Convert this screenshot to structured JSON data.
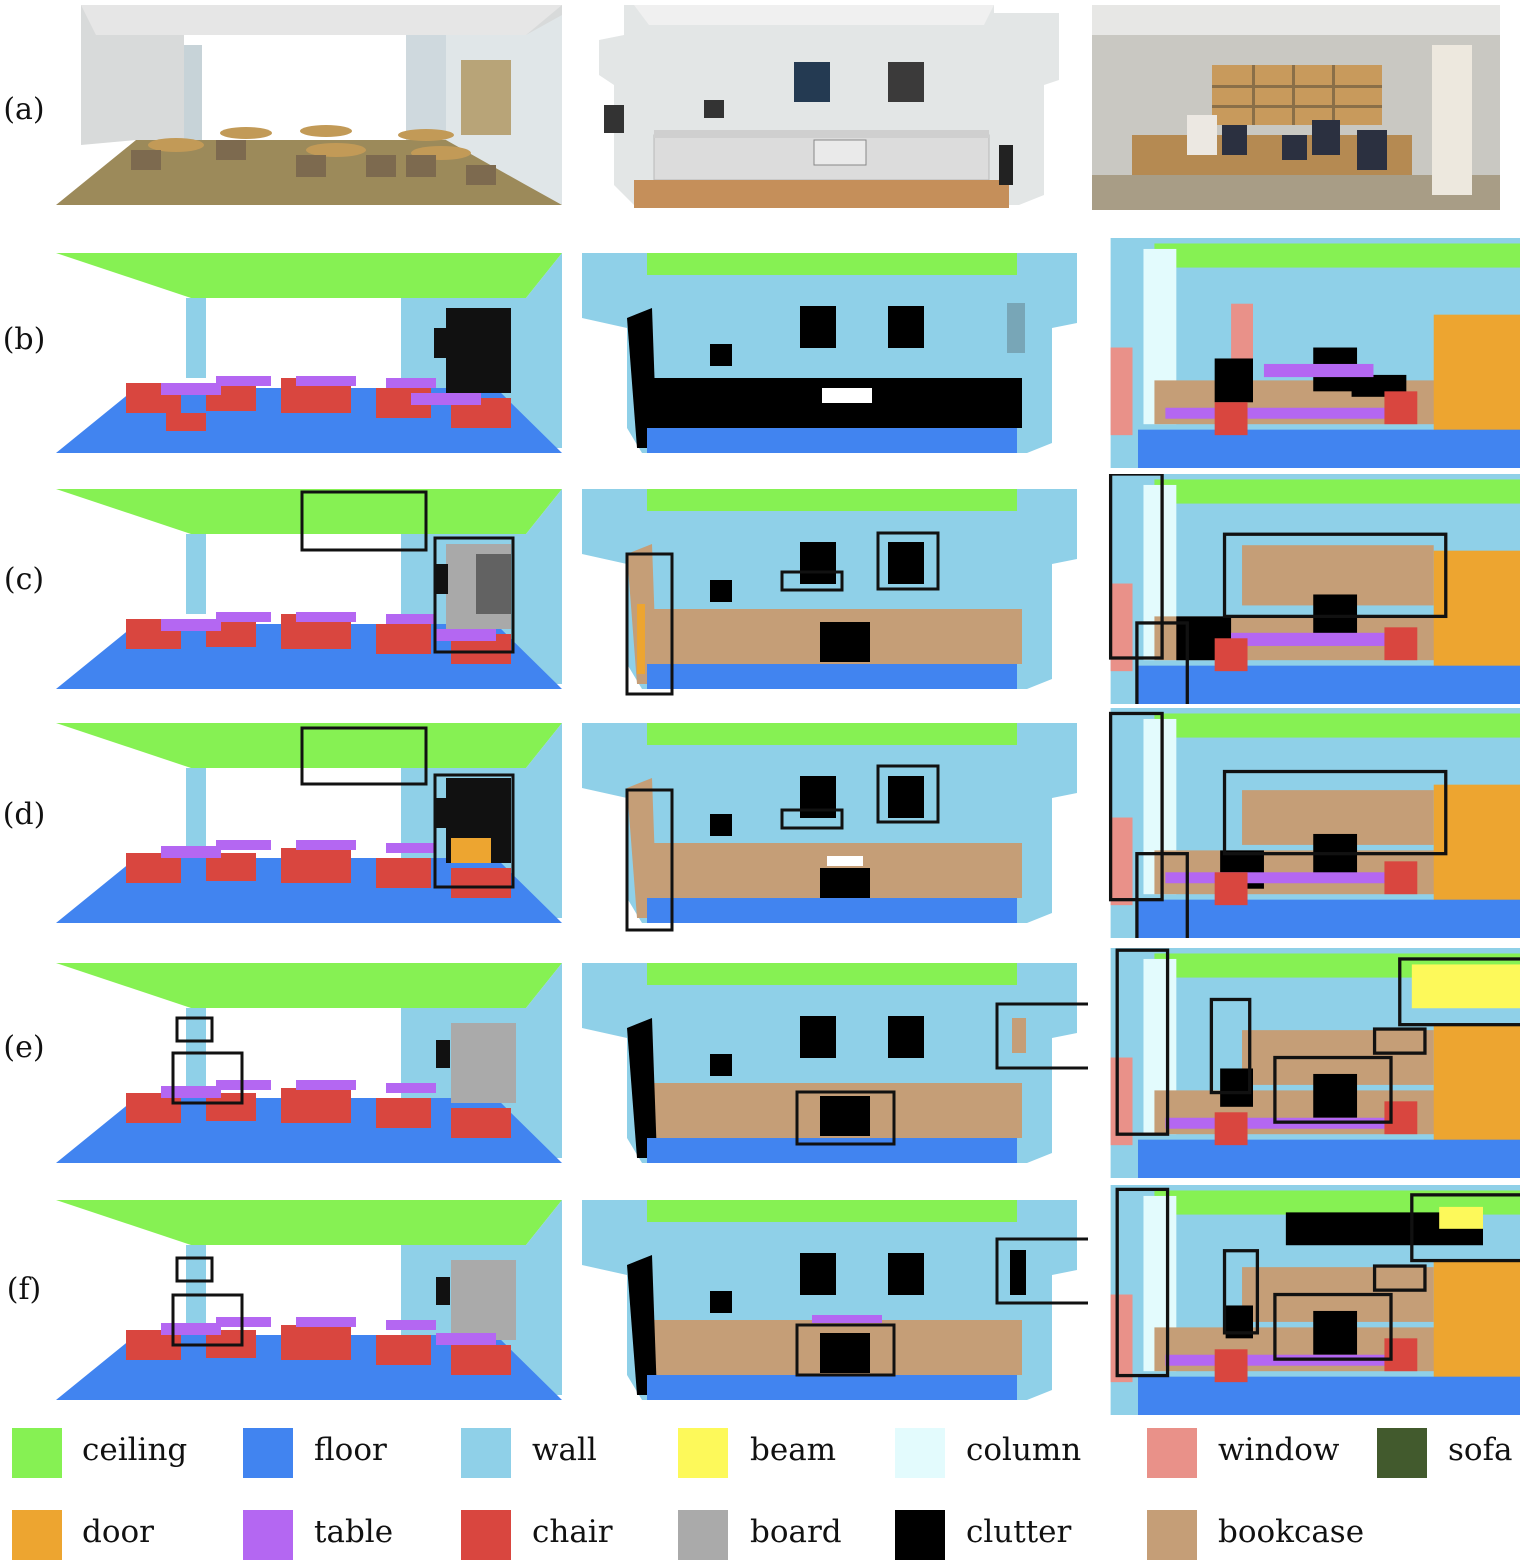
{
  "row_labels": [
    "(a)",
    "(b)",
    "(c)",
    "(d)",
    "(e)",
    "(f)"
  ],
  "legend": [
    {
      "label": "ceiling",
      "color": "#86f153"
    },
    {
      "label": "floor",
      "color": "#4184f0"
    },
    {
      "label": "wall",
      "color": "#8fd0e8"
    },
    {
      "label": "beam",
      "color": "#fdf95a"
    },
    {
      "label": "column",
      "color": "#e3fbfd"
    },
    {
      "label": "window",
      "color": "#e99189"
    },
    {
      "label": "sofa",
      "color": "#425a2d"
    },
    {
      "label": "door",
      "color": "#eda530"
    },
    {
      "label": "table",
      "color": "#b467f2"
    },
    {
      "label": "chair",
      "color": "#d9463f"
    },
    {
      "label": "board",
      "color": "#aaaaaa"
    },
    {
      "label": "clutter",
      "color": "#000000"
    },
    {
      "label": "bookcase",
      "color": "#c59e77"
    }
  ]
}
